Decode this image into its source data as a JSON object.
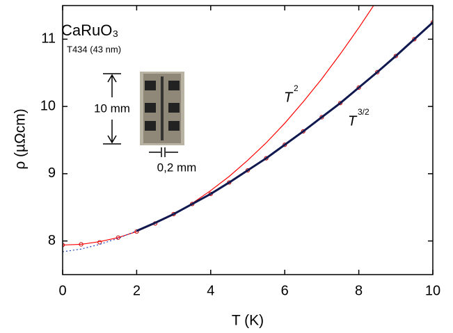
{
  "chart_data": {
    "type": "line",
    "title": "CaRuO₃",
    "subtitle": "T434 (43 nm)",
    "xlabel": "T (K)",
    "ylabel": "ρ (µΩcm)",
    "annotations": [
      {
        "text": "T",
        "sup": "2"
      },
      {
        "text": "T",
        "sup": "3/2"
      },
      {
        "text": "10 mm"
      },
      {
        "text": "0,2 mm"
      }
    ],
    "xlim": [
      0,
      10
    ],
    "ylim": [
      7.5,
      11.5
    ],
    "xticks": [
      0,
      2,
      4,
      6,
      8,
      10
    ],
    "yticks": [
      8,
      9,
      10,
      11
    ],
    "series": [
      {
        "style": "markers",
        "color": "#c00000",
        "x": [
          0,
          0.5,
          1,
          1.5,
          2,
          2.5,
          3,
          3.5,
          4,
          4.5,
          5,
          5.5,
          6,
          6.5,
          7,
          7.5,
          8,
          8.5,
          9,
          9.5,
          10
        ],
        "values": [
          7.94,
          7.95,
          7.98,
          8.05,
          8.14,
          8.26,
          8.4,
          8.55,
          8.7,
          8.87,
          9.05,
          9.23,
          9.43,
          9.63,
          9.84,
          10.05,
          10.28,
          10.51,
          10.75,
          11.0,
          11.25
        ]
      },
      {
        "style": "solid",
        "color": "#ff0000",
        "x": [
          0,
          0.5,
          1,
          1.5,
          2,
          2.5,
          3,
          3.5,
          4,
          4.5,
          5,
          5.5,
          6,
          6.5,
          7,
          7.5,
          8,
          8.4
        ],
        "values": [
          7.94,
          7.95,
          7.99,
          8.05,
          8.14,
          8.26,
          8.39,
          8.56,
          8.75,
          8.96,
          9.2,
          9.46,
          9.75,
          10.07,
          10.41,
          10.78,
          11.17,
          11.5
        ]
      },
      {
        "style": "dashed",
        "color": "#2040c0",
        "x": [
          0,
          0.5,
          1,
          1.5,
          2
        ],
        "values": [
          7.84,
          7.88,
          7.95,
          8.04,
          8.15
        ]
      },
      {
        "style": "thick",
        "color": "#101850",
        "x": [
          2,
          2.5,
          3,
          3.5,
          4,
          4.5,
          5,
          5.5,
          6,
          6.5,
          7,
          7.5,
          8,
          8.5,
          9,
          9.5,
          10
        ],
        "values": [
          8.15,
          8.27,
          8.4,
          8.55,
          8.7,
          8.87,
          9.05,
          9.23,
          9.43,
          9.63,
          9.84,
          10.05,
          10.28,
          10.51,
          10.75,
          11.0,
          11.25
        ]
      }
    ]
  }
}
